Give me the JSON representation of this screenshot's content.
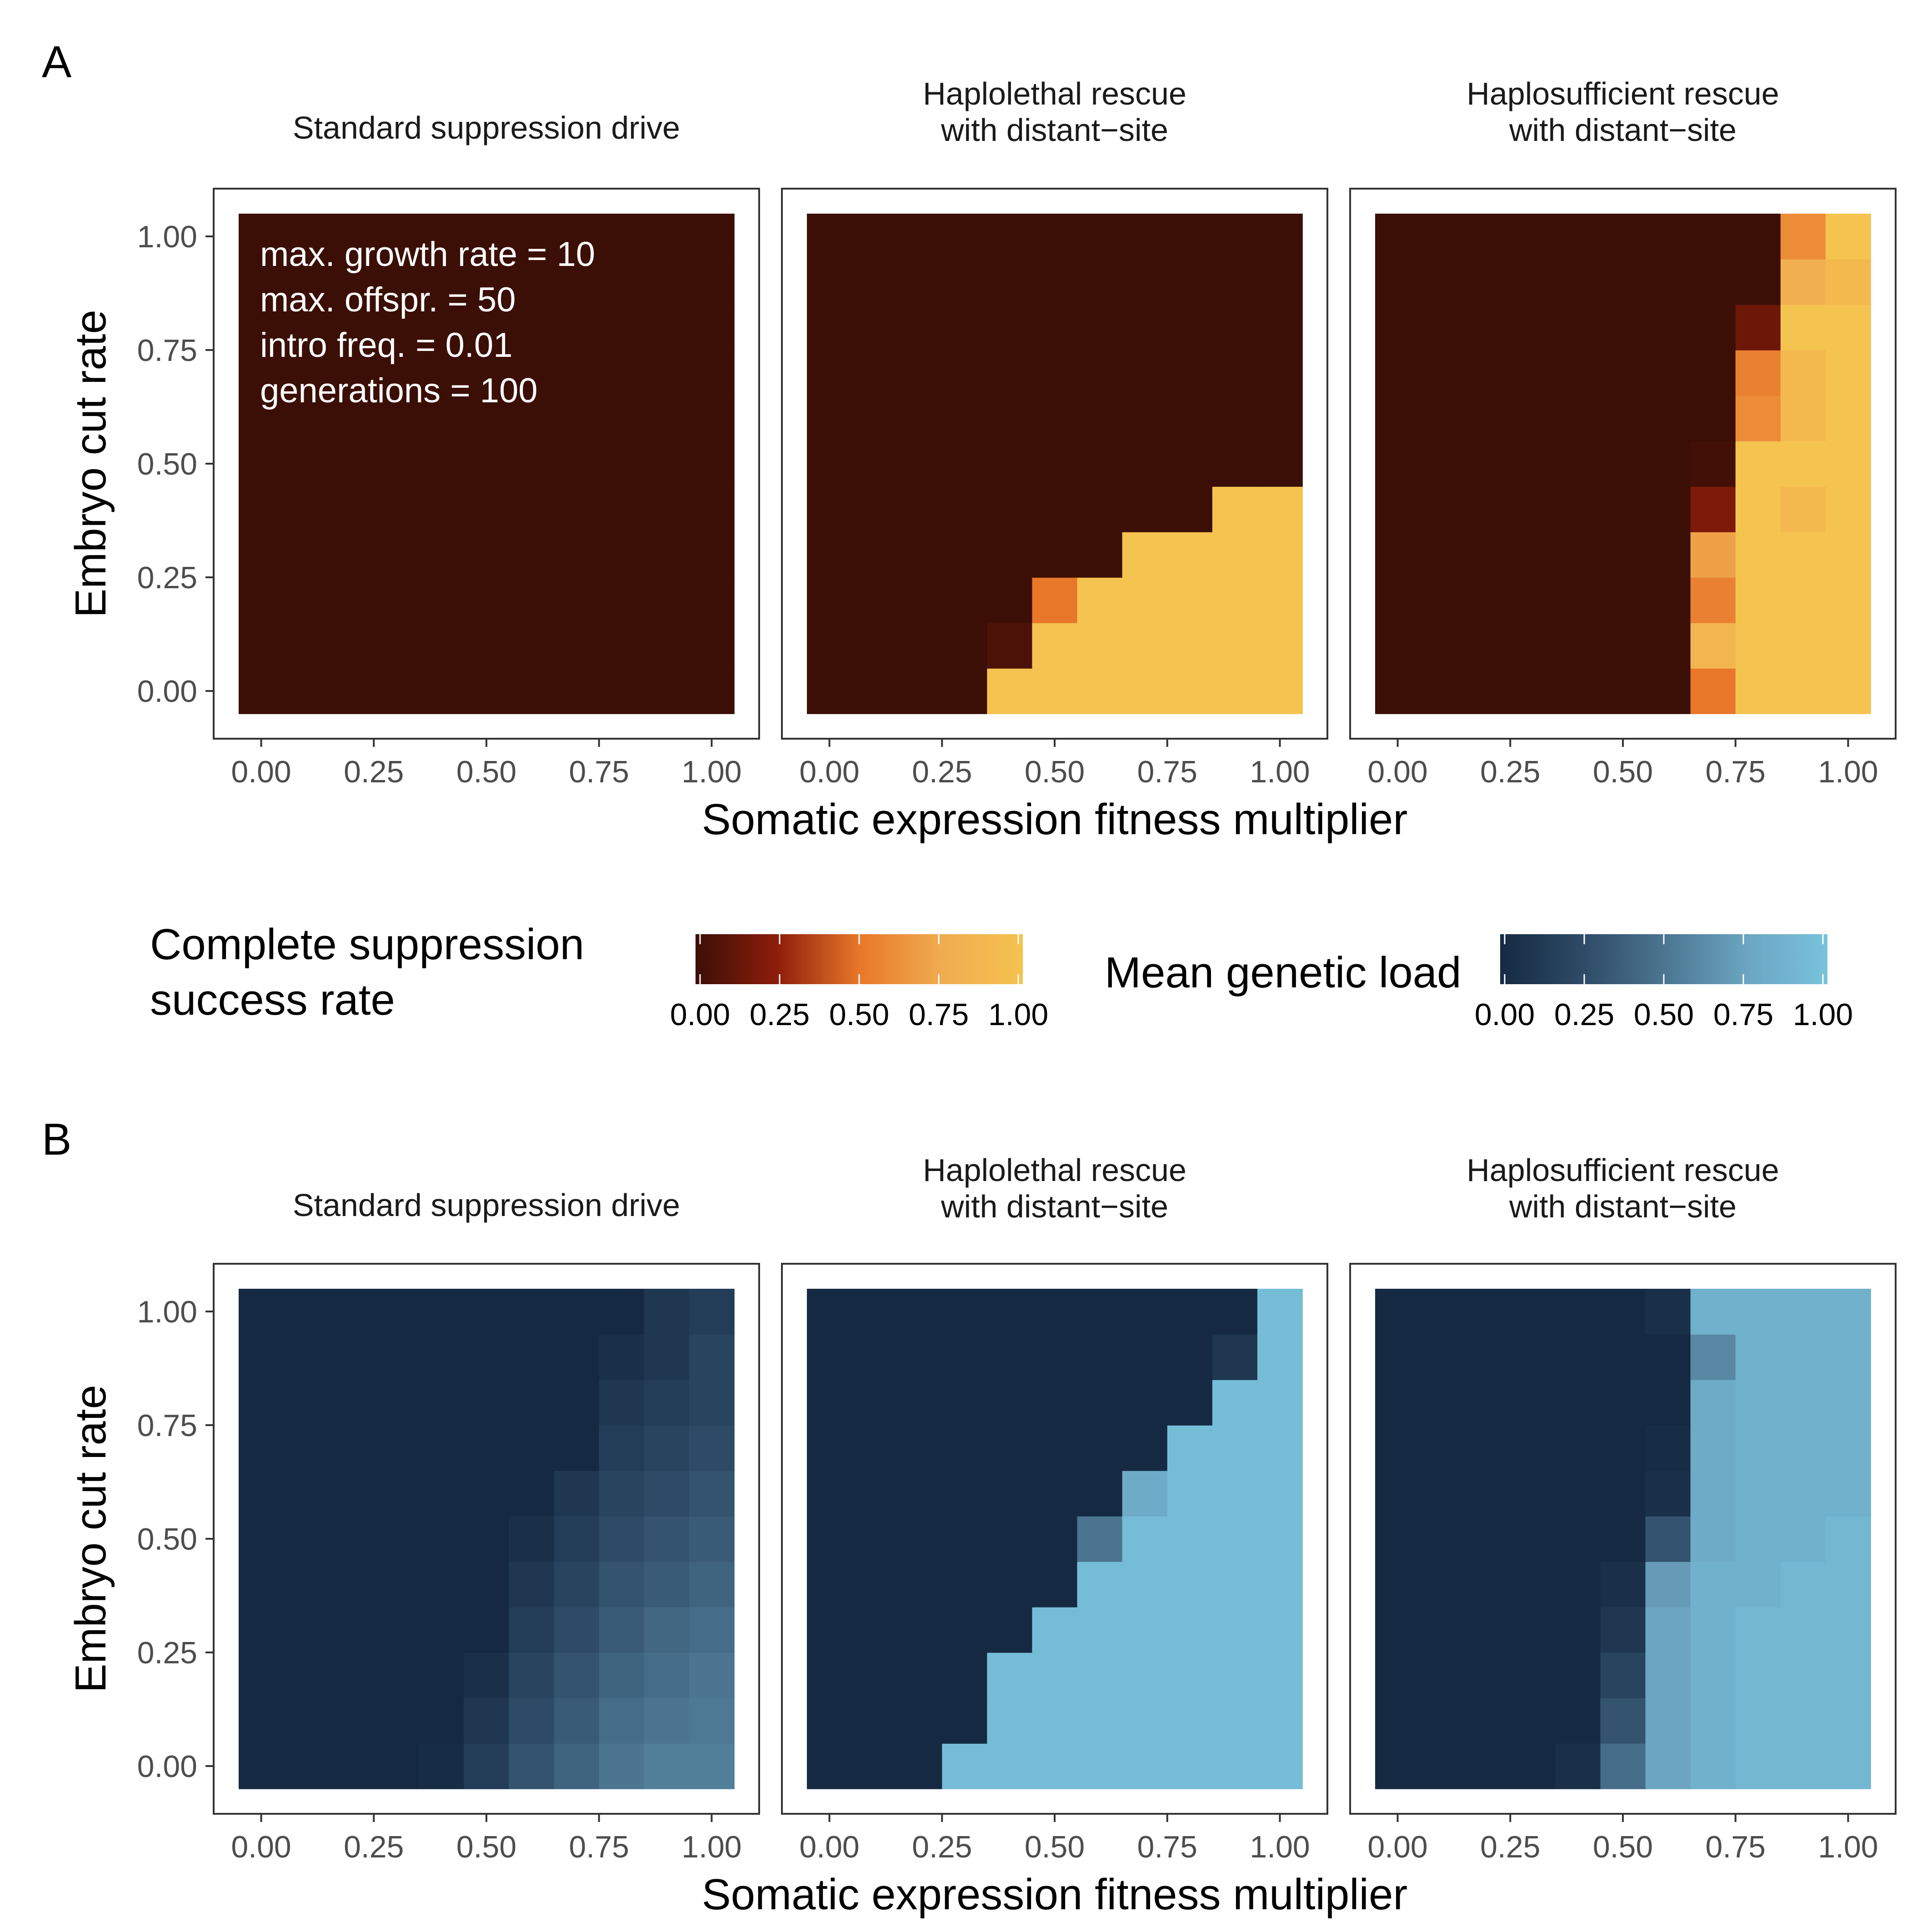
{
  "panel_labels": [
    "A",
    "B"
  ],
  "panel_titles": [
    [
      "Standard suppression drive"
    ],
    [
      "Haplolethal rescue",
      "with distant−site"
    ],
    [
      "Haplosufficient rescue",
      "with distant−site"
    ]
  ],
  "annotation": [
    "max. growth rate = 10",
    "max. offspr. = 50",
    "intro freq. = 0.01",
    "generations = 100"
  ],
  "xlabel": "Somatic expression fitness multiplier",
  "ylabel": "Embryo cut rate",
  "tick_labels": [
    "0.00",
    "0.25",
    "0.50",
    "0.75",
    "1.00"
  ],
  "legends": [
    {
      "title": [
        "Complete suppression",
        "success rate"
      ],
      "colors": [
        "#3b0f06",
        "#8e1d0b",
        "#e8772a",
        "#f1ab50",
        "#f5c34f"
      ],
      "ticks": [
        "0.00",
        "0.25",
        "0.50",
        "0.75",
        "1.00"
      ]
    },
    {
      "title": [
        "Mean genetic load"
      ],
      "colors": [
        "#152a42",
        "#2d4a66",
        "#4b7590",
        "#6ba5c1",
        "#78c3dc"
      ],
      "ticks": [
        "0.00",
        "0.25",
        "0.50",
        "0.75",
        "1.00"
      ]
    }
  ],
  "chart_data": [
    {
      "type": "heatmap",
      "panel": "A",
      "title": "Standard suppression drive",
      "xlabel": "Somatic expression fitness multiplier",
      "ylabel": "Embryo cut rate",
      "metric": "Complete suppression success rate",
      "x": [
        0,
        0.1,
        0.2,
        0.3,
        0.4,
        0.5,
        0.6,
        0.7,
        0.8,
        0.9,
        1.0
      ],
      "y": [
        0,
        0.1,
        0.2,
        0.3,
        0.4,
        0.5,
        0.6,
        0.7,
        0.8,
        0.9,
        1.0
      ],
      "xlim": [
        0,
        1
      ],
      "ylim": [
        0,
        1
      ],
      "values_rows_y0_to_y1": [
        [
          0,
          0,
          0,
          0,
          0,
          0,
          0,
          0,
          0,
          0,
          0
        ],
        [
          0,
          0,
          0,
          0,
          0,
          0,
          0,
          0,
          0,
          0,
          0
        ],
        [
          0,
          0,
          0,
          0,
          0,
          0,
          0,
          0,
          0,
          0,
          0
        ],
        [
          0,
          0,
          0,
          0,
          0,
          0,
          0,
          0,
          0,
          0,
          0
        ],
        [
          0,
          0,
          0,
          0,
          0,
          0,
          0,
          0,
          0,
          0,
          0
        ],
        [
          0,
          0,
          0,
          0,
          0,
          0,
          0,
          0,
          0,
          0,
          0
        ],
        [
          0,
          0,
          0,
          0,
          0,
          0,
          0,
          0,
          0,
          0,
          0
        ],
        [
          0,
          0,
          0,
          0,
          0,
          0,
          0,
          0,
          0,
          0,
          0
        ],
        [
          0,
          0,
          0,
          0,
          0,
          0,
          0,
          0,
          0,
          0,
          0
        ],
        [
          0,
          0,
          0,
          0,
          0,
          0,
          0,
          0,
          0,
          0,
          0
        ],
        [
          0,
          0,
          0,
          0,
          0,
          0,
          0,
          0,
          0,
          0,
          0
        ]
      ]
    },
    {
      "type": "heatmap",
      "panel": "A",
      "title": "Haplolethal rescue with distant−site",
      "xlabel": "Somatic expression fitness multiplier",
      "ylabel": "Embryo cut rate",
      "metric": "Complete suppression success rate",
      "x": [
        0,
        0.1,
        0.2,
        0.3,
        0.4,
        0.5,
        0.6,
        0.7,
        0.8,
        0.9,
        1.0
      ],
      "y": [
        0,
        0.1,
        0.2,
        0.3,
        0.4,
        0.5,
        0.6,
        0.7,
        0.8,
        0.9,
        1.0
      ],
      "xlim": [
        0,
        1
      ],
      "ylim": [
        0,
        1
      ],
      "values_rows_y0_to_y1": [
        [
          0,
          0,
          0,
          0,
          1,
          1,
          1,
          1,
          1,
          1,
          1
        ],
        [
          0,
          0,
          0,
          0,
          0.05,
          1,
          1,
          1,
          1,
          1,
          1
        ],
        [
          0,
          0,
          0,
          0,
          0,
          0.5,
          1,
          1,
          1,
          1,
          1
        ],
        [
          0,
          0,
          0,
          0,
          0,
          0,
          0,
          1,
          1,
          1,
          1
        ],
        [
          0,
          0,
          0,
          0,
          0,
          0,
          0,
          0,
          0,
          1,
          1
        ],
        [
          0,
          0,
          0,
          0,
          0,
          0,
          0,
          0,
          0,
          0,
          0
        ],
        [
          0,
          0,
          0,
          0,
          0,
          0,
          0,
          0,
          0,
          0,
          0
        ],
        [
          0,
          0,
          0,
          0,
          0,
          0,
          0,
          0,
          0,
          0,
          0
        ],
        [
          0,
          0,
          0,
          0,
          0,
          0,
          0,
          0,
          0,
          0,
          0
        ],
        [
          0,
          0,
          0,
          0,
          0,
          0,
          0,
          0,
          0,
          0,
          0
        ],
        [
          0,
          0,
          0,
          0,
          0,
          0,
          0,
          0,
          0,
          0,
          0
        ]
      ]
    },
    {
      "type": "heatmap",
      "panel": "A",
      "title": "Haplosufficient rescue with distant−site",
      "xlabel": "Somatic expression fitness multiplier",
      "ylabel": "Embryo cut rate",
      "metric": "Complete suppression success rate",
      "x": [
        0,
        0.1,
        0.2,
        0.3,
        0.4,
        0.5,
        0.6,
        0.7,
        0.8,
        0.9,
        1.0
      ],
      "y": [
        0,
        0.1,
        0.2,
        0.3,
        0.4,
        0.5,
        0.6,
        0.7,
        0.8,
        0.9,
        1.0
      ],
      "xlim": [
        0,
        1
      ],
      "ylim": [
        0,
        1
      ],
      "values_rows_y0_to_y1": [
        [
          0,
          0,
          0,
          0,
          0,
          0,
          0,
          0.5,
          1,
          1,
          1
        ],
        [
          0,
          0,
          0,
          0,
          0,
          0,
          0,
          0.85,
          1,
          1,
          1
        ],
        [
          0,
          0,
          0,
          0,
          0,
          0,
          0,
          0.55,
          1,
          1,
          1
        ],
        [
          0,
          0,
          0,
          0,
          0,
          0,
          0,
          0.7,
          1,
          1,
          1
        ],
        [
          0,
          0,
          0,
          0,
          0,
          0,
          0,
          0.2,
          1,
          0.9,
          1
        ],
        [
          0,
          0,
          0,
          0,
          0,
          0,
          0,
          0.02,
          1,
          1,
          1
        ],
        [
          0,
          0,
          0,
          0,
          0,
          0,
          0,
          0,
          0.6,
          0.9,
          1
        ],
        [
          0,
          0,
          0,
          0,
          0,
          0,
          0,
          0,
          0.55,
          0.9,
          1
        ],
        [
          0,
          0,
          0,
          0,
          0,
          0,
          0,
          0,
          0.15,
          1,
          1
        ],
        [
          0,
          0,
          0,
          0,
          0,
          0,
          0,
          0,
          0,
          0.8,
          0.9
        ],
        [
          0,
          0,
          0,
          0,
          0,
          0,
          0,
          0,
          0,
          0.6,
          1
        ]
      ]
    },
    {
      "type": "heatmap",
      "panel": "B",
      "title": "Standard suppression drive",
      "xlabel": "Somatic expression fitness multiplier",
      "ylabel": "Embryo cut rate",
      "metric": "Mean genetic load",
      "x": [
        0,
        0.1,
        0.2,
        0.3,
        0.4,
        0.5,
        0.6,
        0.7,
        0.8,
        0.9,
        1.0
      ],
      "y": [
        0,
        0.1,
        0.2,
        0.3,
        0.4,
        0.5,
        0.6,
        0.7,
        0.8,
        0.9,
        1.0
      ],
      "xlim": [
        0,
        1
      ],
      "ylim": [
        0,
        1
      ],
      "values_rows_y0_to_y1": [
        [
          0,
          0,
          0,
          0,
          0.02,
          0.15,
          0.3,
          0.4,
          0.5,
          0.55,
          0.55
        ],
        [
          0,
          0,
          0,
          0,
          0,
          0.1,
          0.25,
          0.35,
          0.45,
          0.5,
          0.52
        ],
        [
          0,
          0,
          0,
          0,
          0,
          0.05,
          0.2,
          0.3,
          0.4,
          0.45,
          0.5
        ],
        [
          0,
          0,
          0,
          0,
          0,
          0,
          0.15,
          0.25,
          0.35,
          0.42,
          0.45
        ],
        [
          0,
          0,
          0,
          0,
          0,
          0,
          0.1,
          0.2,
          0.3,
          0.35,
          0.4
        ],
        [
          0,
          0,
          0,
          0,
          0,
          0,
          0.05,
          0.15,
          0.25,
          0.3,
          0.35
        ],
        [
          0,
          0,
          0,
          0,
          0,
          0,
          0,
          0.1,
          0.2,
          0.25,
          0.3
        ],
        [
          0,
          0,
          0,
          0,
          0,
          0,
          0,
          0,
          0.15,
          0.2,
          0.25
        ],
        [
          0,
          0,
          0,
          0,
          0,
          0,
          0,
          0,
          0.1,
          0.15,
          0.2
        ],
        [
          0,
          0,
          0,
          0,
          0,
          0,
          0,
          0,
          0.05,
          0.1,
          0.2
        ],
        [
          0,
          0,
          0,
          0,
          0,
          0,
          0,
          0,
          0,
          0.1,
          0.15
        ]
      ]
    },
    {
      "type": "heatmap",
      "panel": "B",
      "title": "Haplolethal rescue with distant−site",
      "xlabel": "Somatic expression fitness multiplier",
      "ylabel": "Embryo cut rate",
      "metric": "Mean genetic load",
      "x": [
        0,
        0.1,
        0.2,
        0.3,
        0.4,
        0.5,
        0.6,
        0.7,
        0.8,
        0.9,
        1.0
      ],
      "y": [
        0,
        0.1,
        0.2,
        0.3,
        0.4,
        0.5,
        0.6,
        0.7,
        0.8,
        0.9,
        1.0
      ],
      "xlim": [
        0,
        1
      ],
      "ylim": [
        0,
        1
      ],
      "values_rows_y0_to_y1": [
        [
          0,
          0,
          0,
          0.95,
          0.95,
          0.95,
          0.95,
          0.95,
          0.95,
          0.95,
          0.95
        ],
        [
          0,
          0,
          0,
          0,
          0.95,
          0.95,
          0.95,
          0.95,
          0.95,
          0.95,
          0.95
        ],
        [
          0,
          0,
          0,
          0,
          0.95,
          0.95,
          0.95,
          0.95,
          0.95,
          0.95,
          0.95
        ],
        [
          0,
          0,
          0,
          0,
          0,
          0.95,
          0.95,
          0.95,
          0.95,
          0.95,
          0.95
        ],
        [
          0,
          0,
          0,
          0,
          0,
          0,
          0.95,
          0.95,
          0.95,
          0.95,
          0.95
        ],
        [
          0,
          0,
          0,
          0,
          0,
          0,
          0.5,
          0.95,
          0.95,
          0.95,
          0.95
        ],
        [
          0,
          0,
          0,
          0,
          0,
          0,
          0,
          0.8,
          0.95,
          0.95,
          0.95
        ],
        [
          0,
          0,
          0,
          0,
          0,
          0,
          0,
          0,
          0.95,
          0.95,
          0.95
        ],
        [
          0,
          0,
          0,
          0,
          0,
          0,
          0,
          0,
          0,
          0.95,
          0.95
        ],
        [
          0,
          0,
          0,
          0,
          0,
          0,
          0,
          0,
          0,
          0.1,
          0.95
        ],
        [
          0,
          0,
          0,
          0,
          0,
          0,
          0,
          0,
          0,
          0,
          0.95
        ]
      ]
    },
    {
      "type": "heatmap",
      "panel": "B",
      "title": "Haplosufficient rescue with distant−site",
      "xlabel": "Somatic expression fitness multiplier",
      "ylabel": "Embryo cut rate",
      "metric": "Mean genetic load",
      "x": [
        0,
        0.1,
        0.2,
        0.3,
        0.4,
        0.5,
        0.6,
        0.7,
        0.8,
        0.9,
        1.0
      ],
      "y": [
        0,
        0.1,
        0.2,
        0.3,
        0.4,
        0.5,
        0.6,
        0.7,
        0.8,
        0.9,
        1.0
      ],
      "xlim": [
        0,
        1
      ],
      "ylim": [
        0,
        1
      ],
      "values_rows_y0_to_y1": [
        [
          0,
          0,
          0,
          0,
          0.05,
          0.45,
          0.75,
          0.85,
          0.9,
          0.9,
          0.9
        ],
        [
          0,
          0,
          0,
          0,
          0,
          0.3,
          0.75,
          0.85,
          0.9,
          0.9,
          0.9
        ],
        [
          0,
          0,
          0,
          0,
          0,
          0.2,
          0.75,
          0.85,
          0.9,
          0.9,
          0.9
        ],
        [
          0,
          0,
          0,
          0,
          0,
          0.1,
          0.75,
          0.85,
          0.9,
          0.9,
          0.9
        ],
        [
          0,
          0,
          0,
          0,
          0,
          0.05,
          0.7,
          0.85,
          0.85,
          0.9,
          0.9
        ],
        [
          0,
          0,
          0,
          0,
          0,
          0,
          0.3,
          0.8,
          0.85,
          0.85,
          0.9
        ],
        [
          0,
          0,
          0,
          0,
          0,
          0,
          0.05,
          0.8,
          0.85,
          0.85,
          0.85
        ],
        [
          0,
          0,
          0,
          0,
          0,
          0,
          0.02,
          0.8,
          0.85,
          0.85,
          0.85
        ],
        [
          0,
          0,
          0,
          0,
          0,
          0,
          0,
          0.8,
          0.85,
          0.85,
          0.85
        ],
        [
          0,
          0,
          0,
          0,
          0,
          0,
          0,
          0.6,
          0.85,
          0.85,
          0.85
        ],
        [
          0,
          0,
          0,
          0,
          0,
          0,
          0.05,
          0.85,
          0.85,
          0.85,
          0.85
        ]
      ]
    }
  ]
}
